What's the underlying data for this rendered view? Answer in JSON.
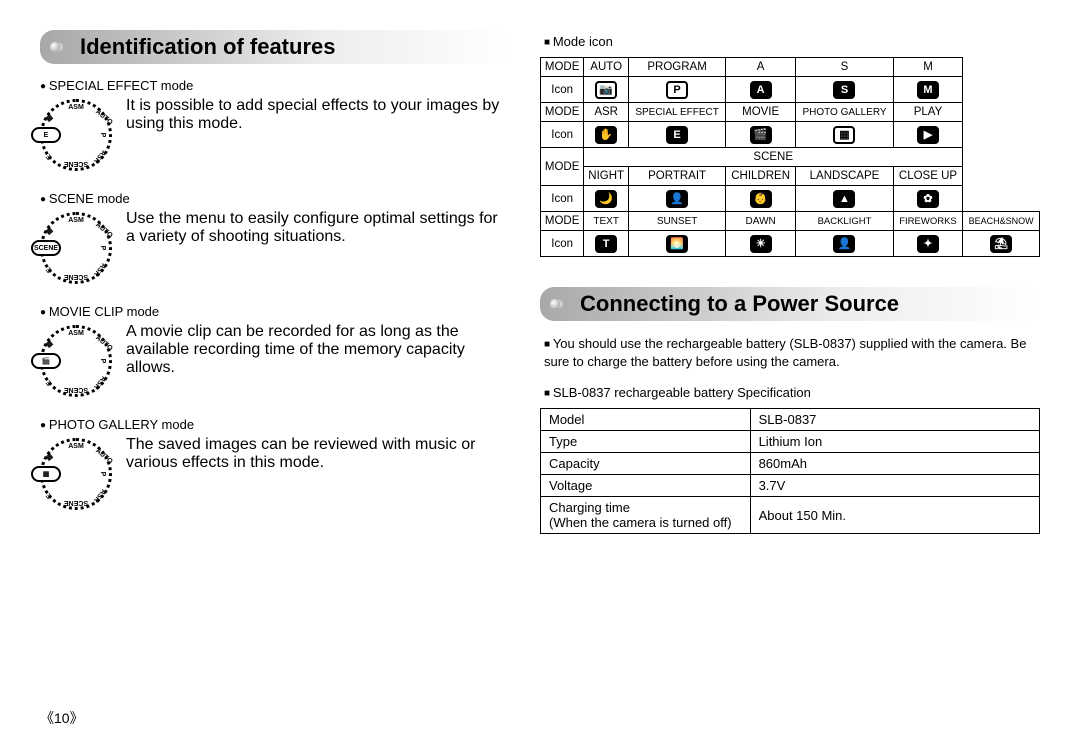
{
  "headers": {
    "identification": "Identification of features",
    "power": "Connecting to a Power Source"
  },
  "modes": [
    {
      "title": "SPECIAL EFFECT mode",
      "desc": "It is possible to add special effects to your images by using this mode.",
      "pointer": "E"
    },
    {
      "title": "SCENE mode",
      "desc": "Use the menu to easily configure optimal settings for a variety of shooting situations.",
      "pointer": "SCENE"
    },
    {
      "title": "MOVIE CLIP mode",
      "desc": "A movie clip can be recorded for as long as the available recording time of the memory capacity allows.",
      "pointer": "🎬"
    },
    {
      "title": "PHOTO GALLERY mode",
      "desc": "The saved images can be reviewed with music or various effects in this mode.",
      "pointer": "▦"
    }
  ],
  "modeIconLabel": "Mode icon",
  "tblRow1": {
    "mode": "MODE",
    "c": [
      "AUTO",
      "PROGRAM",
      "A",
      "S",
      "M"
    ]
  },
  "tblRow2": {
    "mode": "Icon",
    "icons": [
      "📷",
      "P",
      "A",
      "S",
      "M"
    ]
  },
  "tblRow3": {
    "mode": "MODE",
    "c": [
      "ASR",
      "SPECIAL EFFECT",
      "MOVIE",
      "PHOTO GALLERY",
      "PLAY"
    ]
  },
  "tblRow4": {
    "mode": "Icon",
    "icons": [
      "✋",
      "E",
      "🎬",
      "▦",
      "▶"
    ]
  },
  "tblSceneHeader": "SCENE",
  "tblRow5": {
    "mode": "MODE",
    "c": [
      "NIGHT",
      "PORTRAIT",
      "CHILDREN",
      "LANDSCAPE",
      "CLOSE UP"
    ]
  },
  "tblRow6": {
    "mode": "Icon",
    "icons": [
      "🌙",
      "👤",
      "👶",
      "▲",
      "✿"
    ]
  },
  "tblRow7": {
    "mode": "MODE",
    "c": [
      "TEXT",
      "SUNSET",
      "DAWN",
      "BACKLIGHT",
      "FIREWORKS",
      "BEACH&SNOW"
    ]
  },
  "tblRow8": {
    "mode": "Icon",
    "icons": [
      "T",
      "🌅",
      "☀",
      "👤",
      "✦",
      "⛱"
    ]
  },
  "powerText": "You should use the rechargeable battery (SLB-0837) supplied with the camera. Be sure to charge the battery before using the camera.",
  "specLabel": "SLB-0837 rechargeable battery Specification",
  "spec": [
    [
      "Model",
      "SLB-0837"
    ],
    [
      "Type",
      "Lithium Ion"
    ],
    [
      "Capacity",
      "860mAh"
    ],
    [
      "Voltage",
      "3.7V"
    ],
    [
      "Charging time\n(When the camera is turned off)",
      "About 150 Min."
    ]
  ],
  "pageNum": "《10》",
  "dialLabels": [
    "ASM",
    "AUTO",
    "P",
    "ASR",
    "SCENE",
    "E",
    "🎬",
    "▦"
  ]
}
